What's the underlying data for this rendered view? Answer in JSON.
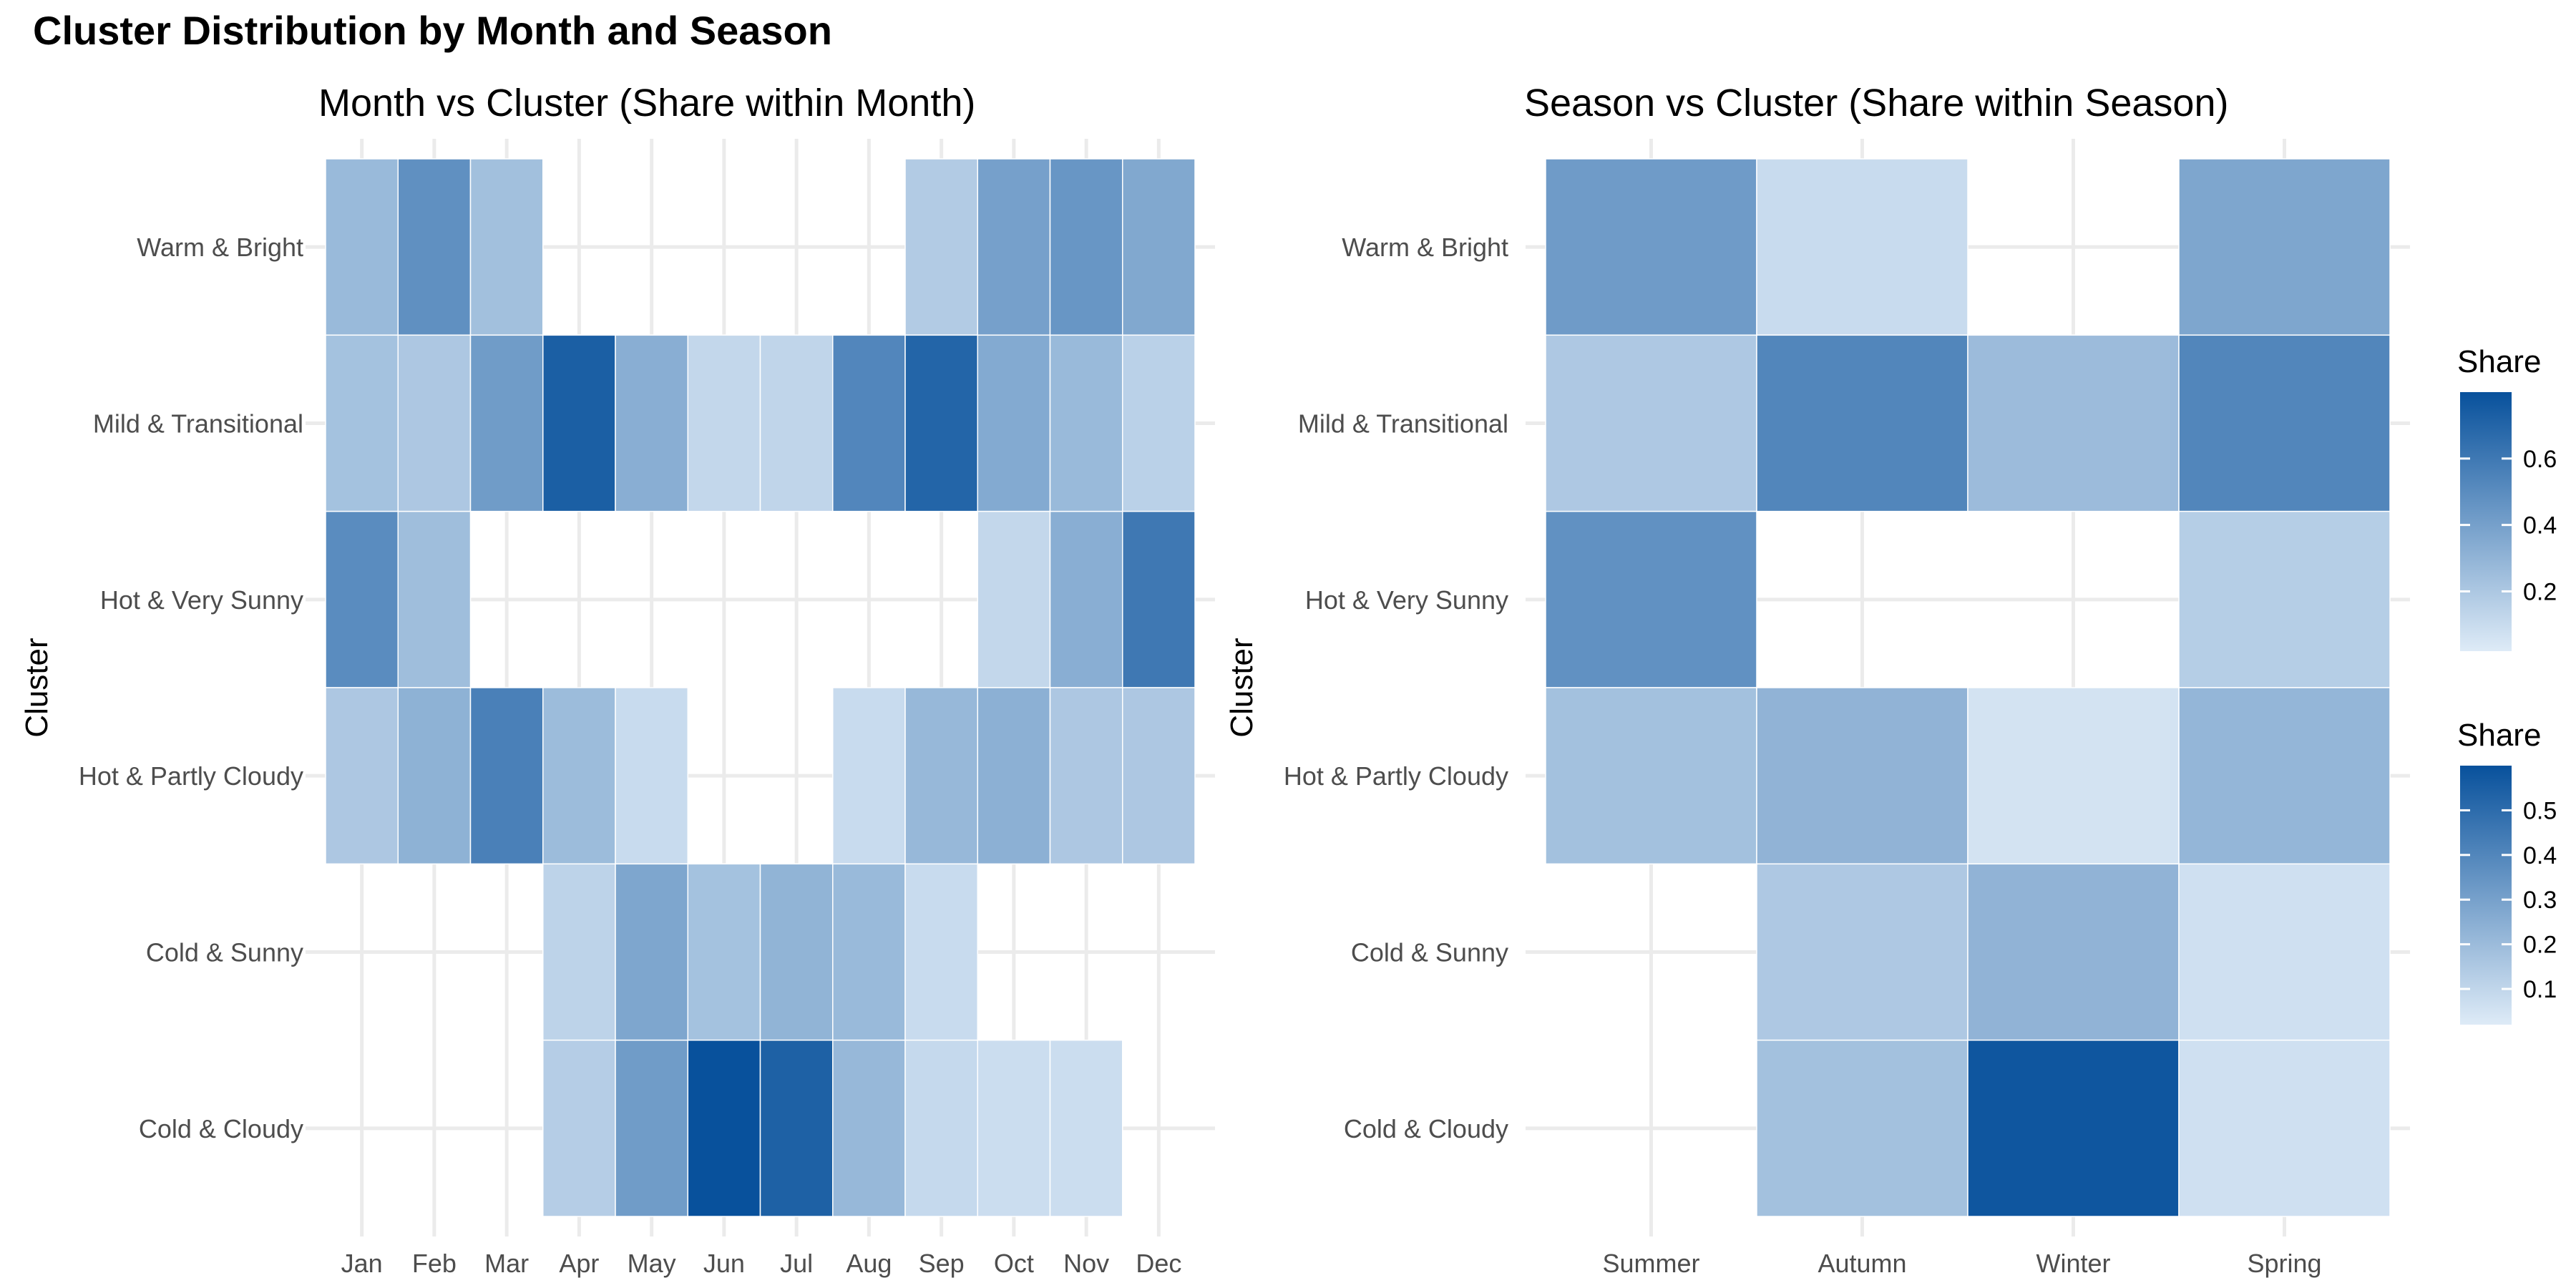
{
  "page_title": "Cluster Distribution by Month and Season",
  "chart_data": [
    {
      "type": "heatmap",
      "title": "Month vs Cluster (Share within Month)",
      "xlabel": "",
      "ylabel": "Cluster",
      "categories": [
        "Jan",
        "Feb",
        "Mar",
        "Apr",
        "May",
        "Jun",
        "Jul",
        "Aug",
        "Sep",
        "Oct",
        "Nov",
        "Dec"
      ],
      "clusters": [
        "Warm & Bright",
        "Mild & Transitional",
        "Hot & Very Sunny",
        "Hot & Partly Cloudy",
        "Cold & Sunny",
        "Cold & Cloudy"
      ],
      "values": [
        [
          0.27,
          0.48,
          0.24,
          null,
          null,
          null,
          null,
          null,
          0.18,
          0.4,
          0.45,
          0.36
        ],
        [
          0.23,
          0.2,
          0.42,
          0.73,
          0.33,
          0.12,
          0.13,
          0.53,
          0.7,
          0.35,
          0.27,
          0.15
        ],
        [
          0.5,
          0.25,
          null,
          null,
          null,
          null,
          null,
          null,
          null,
          0.12,
          0.33,
          0.6
        ],
        [
          0.2,
          0.31,
          0.56,
          0.26,
          0.1,
          null,
          null,
          0.1,
          0.28,
          0.32,
          0.2,
          0.2
        ],
        [
          null,
          null,
          null,
          0.14,
          0.37,
          0.23,
          0.3,
          0.27,
          0.1,
          null,
          null,
          null
        ],
        [
          null,
          null,
          null,
          0.17,
          0.42,
          0.88,
          0.72,
          0.28,
          0.11,
          0.09,
          0.09,
          null
        ]
      ],
      "legend": {
        "title": "Share",
        "ticks": [
          0.2,
          0.4,
          0.6
        ],
        "range": [
          0.02,
          0.8
        ],
        "low_color": "#deebf7",
        "high_color": "#08519c"
      }
    },
    {
      "type": "heatmap",
      "title": "Season vs Cluster (Share within Season)",
      "xlabel": "",
      "ylabel": "Cluster",
      "categories": [
        "Summer",
        "Autumn",
        "Winter",
        "Spring"
      ],
      "clusters": [
        "Warm & Bright",
        "Mild & Transitional",
        "Hot & Very Sunny",
        "Hot & Partly Cloudy",
        "Cold & Sunny",
        "Cold & Cloudy"
      ],
      "values": [
        [
          0.32,
          0.08,
          null,
          0.28
        ],
        [
          0.15,
          0.4,
          0.2,
          0.4
        ],
        [
          0.36,
          null,
          null,
          0.13
        ],
        [
          0.18,
          0.23,
          0.05,
          0.22
        ],
        [
          null,
          0.15,
          0.23,
          0.06
        ],
        [
          null,
          0.18,
          0.58,
          0.06
        ]
      ],
      "legend": {
        "title": "Share",
        "ticks": [
          0.1,
          0.2,
          0.3,
          0.4,
          0.5
        ],
        "range": [
          0.02,
          0.6
        ],
        "low_color": "#deebf7",
        "high_color": "#08519c"
      }
    }
  ]
}
